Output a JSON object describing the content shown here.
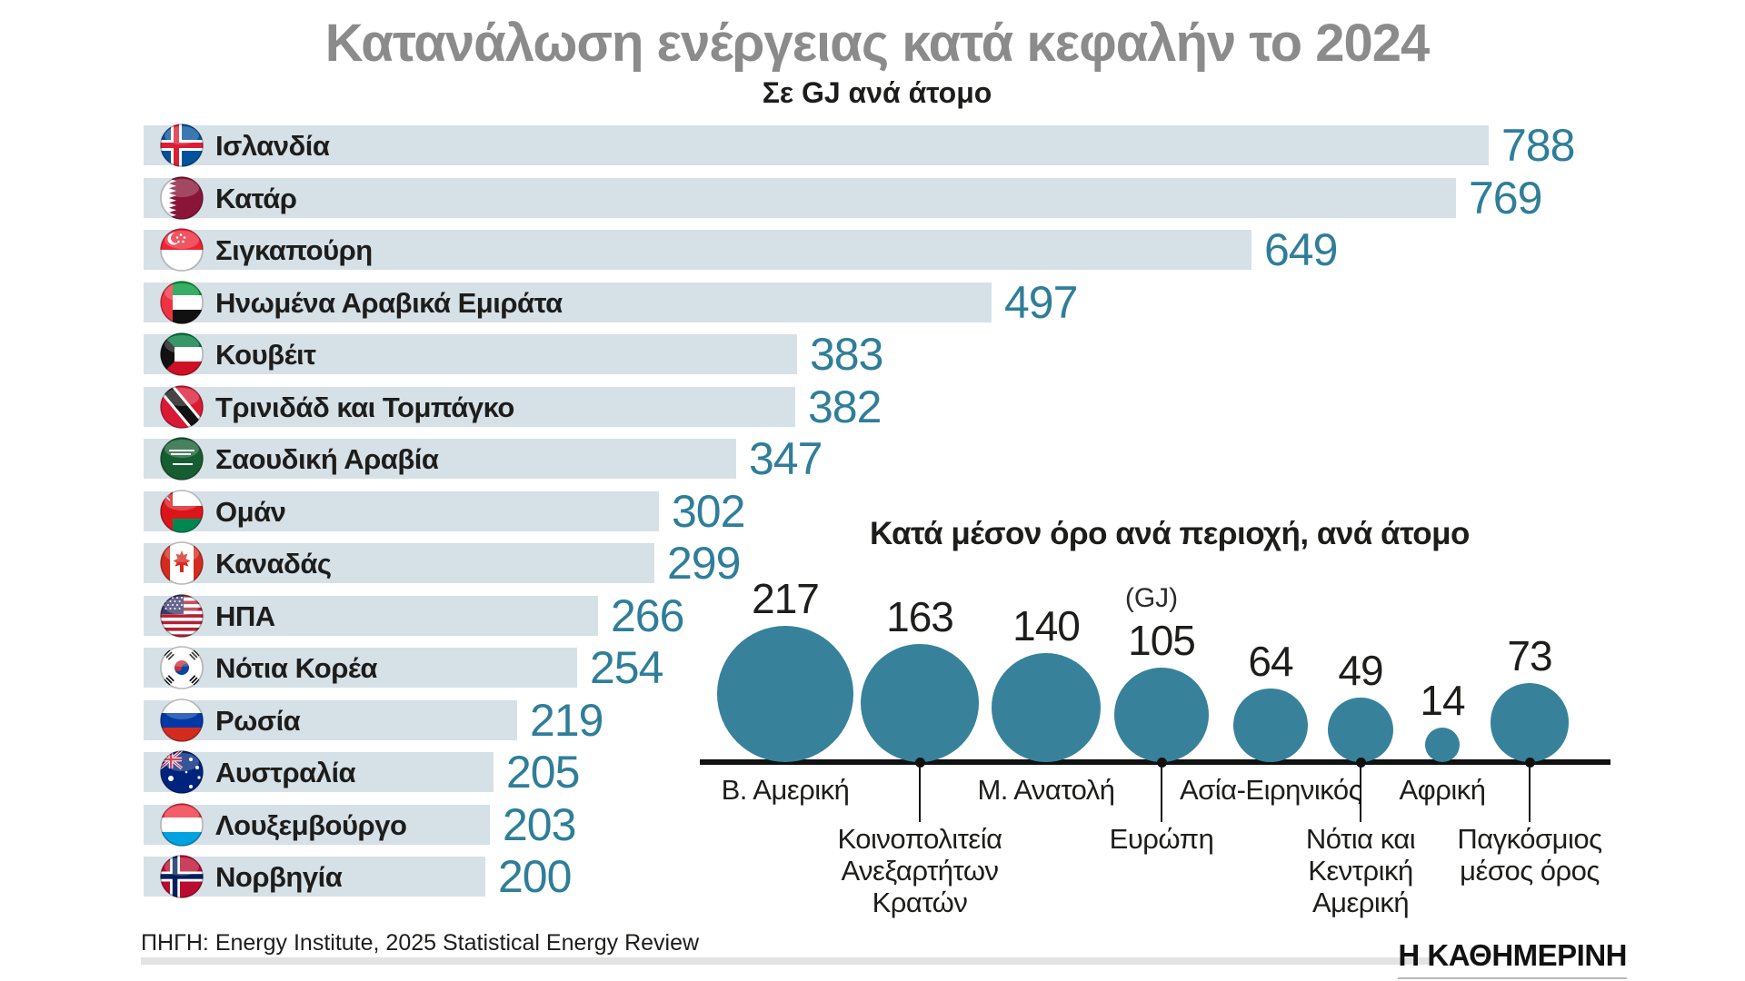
{
  "title": "Κατανάλωση ενέργειας κατά κεφαλήν το 2024",
  "subtitle": "Σε GJ ανά άτομο",
  "colors": {
    "bar_fill": "#d6e0e7",
    "bar_value_text": "#2f7e99",
    "bubble_fill": "#37829a",
    "title_gray": "#8b8b8b"
  },
  "chart_data": [
    {
      "type": "bar",
      "orientation": "horizontal",
      "unit": "GJ",
      "xlim": [
        0,
        788
      ],
      "items": [
        {
          "country": "Ισλανδία",
          "value": 788,
          "flag": "iceland"
        },
        {
          "country": "Κατάρ",
          "value": 769,
          "flag": "qatar"
        },
        {
          "country": "Σιγκαπούρη",
          "value": 649,
          "flag": "singapore"
        },
        {
          "country": "Ηνωμένα Αραβικά Εμιράτα",
          "value": 497,
          "flag": "uae"
        },
        {
          "country": "Κουβέιτ",
          "value": 383,
          "flag": "kuwait"
        },
        {
          "country": "Τρινιδάδ και Τομπάγκο",
          "value": 382,
          "flag": "trinidad-tobago"
        },
        {
          "country": "Σαουδική Αραβία",
          "value": 347,
          "flag": "saudi-arabia"
        },
        {
          "country": "Ομάν",
          "value": 302,
          "flag": "oman"
        },
        {
          "country": "Καναδάς",
          "value": 299,
          "flag": "canada"
        },
        {
          "country": "ΗΠΑ",
          "value": 266,
          "flag": "usa"
        },
        {
          "country": "Νότια Κορέα",
          "value": 254,
          "flag": "south-korea"
        },
        {
          "country": "Ρωσία",
          "value": 219,
          "flag": "russia"
        },
        {
          "country": "Αυστραλία",
          "value": 205,
          "flag": "australia"
        },
        {
          "country": "Λουξεμβούργο",
          "value": 203,
          "flag": "luxembourg"
        },
        {
          "country": "Νορβηγία",
          "value": 200,
          "flag": "norway"
        }
      ]
    },
    {
      "type": "bubble",
      "title": "Κατά μέσον όρο ανά περιοχή, ανά άτομο",
      "subtitle": "(GJ)",
      "items": [
        {
          "label": "Β. Αμερική",
          "lines": [
            "Β. Αμερική"
          ],
          "value": 217,
          "label_row": "top"
        },
        {
          "label": "Κοινοπολιτεία Ανεξαρτήτων Κρατών",
          "lines": [
            "Κοινοπολιτεία",
            "Ανεξαρτήτων",
            "Κρατών"
          ],
          "value": 163,
          "label_row": "bottom"
        },
        {
          "label": "Μ. Ανατολή",
          "lines": [
            "Μ. Ανατολή"
          ],
          "value": 140,
          "label_row": "top"
        },
        {
          "label": "Ευρώπη",
          "lines": [
            "Ευρώπη"
          ],
          "value": 105,
          "label_row": "bottom"
        },
        {
          "label": "Ασία-Ειρηνικός",
          "lines": [
            "Ασία-Ειρηνικός"
          ],
          "value": 64,
          "label_row": "top"
        },
        {
          "label": "Νότια και Κεντρική Αμερική",
          "lines": [
            "Νότια και",
            "Κεντρική",
            "Αμερική"
          ],
          "value": 49,
          "label_row": "bottom"
        },
        {
          "label": "Αφρική",
          "lines": [
            "Αφρική"
          ],
          "value": 14,
          "label_row": "top"
        },
        {
          "label": "Παγκόσμιος μέσος όρος",
          "lines": [
            "Παγκόσμιος",
            "μέσος όρος"
          ],
          "value": 73,
          "label_row": "bottom"
        }
      ]
    }
  ],
  "footer": {
    "source": "ΠΗΓΗ: Energy Institute, 2025 Statistical Energy Review",
    "logo": "Η ΚΑΘΗΜΕΡΙΝΗ"
  }
}
